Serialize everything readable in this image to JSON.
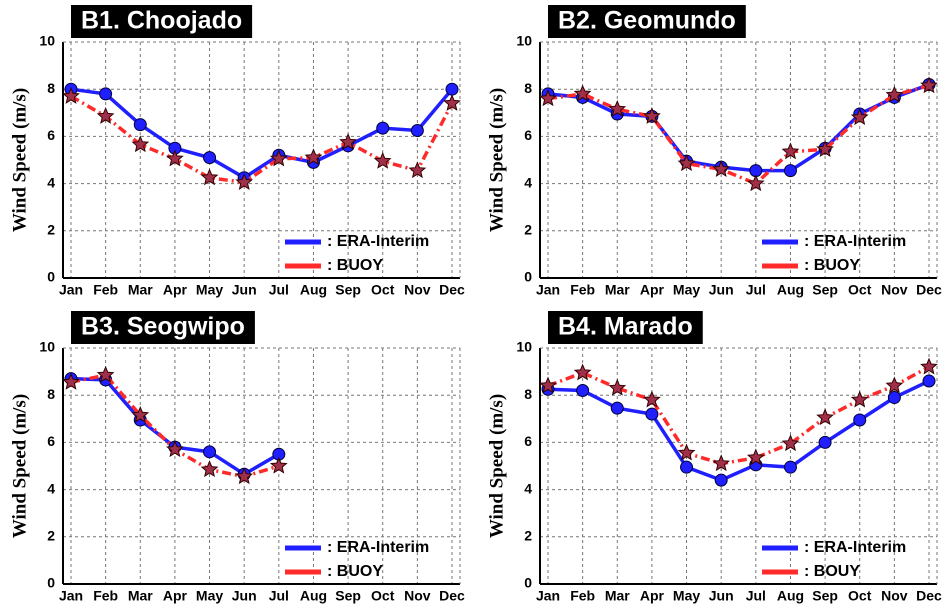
{
  "chart_data": [
    {
      "type": "line",
      "title": "B1. Choojado",
      "y_label": "Wind Speed (m/s)",
      "categories": [
        "Jan",
        "Feb",
        "Mar",
        "Apr",
        "May",
        "Jun",
        "Jul",
        "Aug",
        "Sep",
        "Oct",
        "Nov",
        "Dec"
      ],
      "ylim": [
        0,
        10
      ],
      "yticks": [
        0,
        2,
        4,
        6,
        8,
        10
      ],
      "grid": true,
      "legend": "lower right",
      "series": [
        {
          "name": ": ERA-Interim",
          "color": "#1f1fff",
          "marker": "circle",
          "values": [
            8.0,
            7.8,
            6.5,
            5.5,
            5.1,
            4.25,
            5.2,
            4.9,
            5.6,
            6.35,
            6.25,
            8.0
          ]
        },
        {
          "name": ": BUOY",
          "color": "#ff2a2a",
          "marker": "star",
          "values": [
            7.7,
            6.85,
            5.65,
            5.05,
            4.25,
            4.05,
            5.05,
            5.1,
            5.75,
            4.95,
            4.55,
            7.4
          ]
        }
      ]
    },
    {
      "type": "line",
      "title": "B2. Geomundo",
      "y_label": "Wind Speed (m/s)",
      "categories": [
        "Jan",
        "Feb",
        "Mar",
        "Apr",
        "May",
        "Jun",
        "Jul",
        "Aug",
        "Sep",
        "Oct",
        "Nov",
        "Dec"
      ],
      "ylim": [
        0,
        10
      ],
      "yticks": [
        0,
        2,
        4,
        6,
        8,
        10
      ],
      "grid": true,
      "legend": "lower right",
      "series": [
        {
          "name": ": ERA-Interim",
          "color": "#1f1fff",
          "marker": "circle",
          "values": [
            7.8,
            7.65,
            6.95,
            6.85,
            4.95,
            4.7,
            4.55,
            4.55,
            5.5,
            6.95,
            7.65,
            8.2
          ]
        },
        {
          "name": ": BUOY",
          "color": "#ff2a2a",
          "marker": "star",
          "values": [
            7.6,
            7.8,
            7.15,
            6.85,
            4.85,
            4.6,
            4.0,
            5.35,
            5.45,
            6.8,
            7.75,
            8.15
          ]
        }
      ]
    },
    {
      "type": "line",
      "title": "B3. Seogwipo",
      "y_label": "Wind Speed (m/s)",
      "categories": [
        "Jan",
        "Feb",
        "Mar",
        "Apr",
        "May",
        "Jun",
        "Jul",
        "Aug",
        "Sep",
        "Oct",
        "Nov",
        "Dec"
      ],
      "ylim": [
        0,
        10
      ],
      "yticks": [
        0,
        2,
        4,
        6,
        8,
        10
      ],
      "grid": true,
      "legend": "lower right",
      "series": [
        {
          "name": ": ERA-Interim",
          "color": "#1f1fff",
          "marker": "circle",
          "values": [
            8.7,
            8.65,
            6.95,
            5.8,
            5.6,
            4.65,
            5.5,
            null,
            null,
            null,
            null,
            null
          ]
        },
        {
          "name": ": BUOY",
          "color": "#ff2a2a",
          "marker": "star",
          "values": [
            8.55,
            8.85,
            7.15,
            5.7,
            4.85,
            4.55,
            5.0,
            null,
            null,
            null,
            null,
            null
          ]
        }
      ]
    },
    {
      "type": "line",
      "title": "B4. Marado",
      "y_label": "Wind Speed (m/s)",
      "categories": [
        "Jan",
        "Feb",
        "Mar",
        "Apr",
        "May",
        "Jun",
        "Jul",
        "Aug",
        "Sep",
        "Oct",
        "Nov",
        "Dec"
      ],
      "ylim": [
        0,
        10
      ],
      "yticks": [
        0,
        2,
        4,
        6,
        8,
        10
      ],
      "grid": true,
      "legend": "lower right",
      "series": [
        {
          "name": ": ERA-Interim",
          "color": "#1f1fff",
          "marker": "circle",
          "values": [
            8.25,
            8.2,
            7.45,
            7.2,
            4.95,
            4.4,
            5.05,
            4.95,
            6.0,
            6.95,
            7.9,
            8.6
          ]
        },
        {
          "name": ": BOUY",
          "color": "#ff2a2a",
          "marker": "star",
          "values": [
            8.4,
            8.95,
            8.3,
            7.8,
            5.55,
            5.1,
            5.35,
            5.95,
            7.05,
            7.8,
            8.4,
            9.2
          ]
        }
      ]
    }
  ]
}
